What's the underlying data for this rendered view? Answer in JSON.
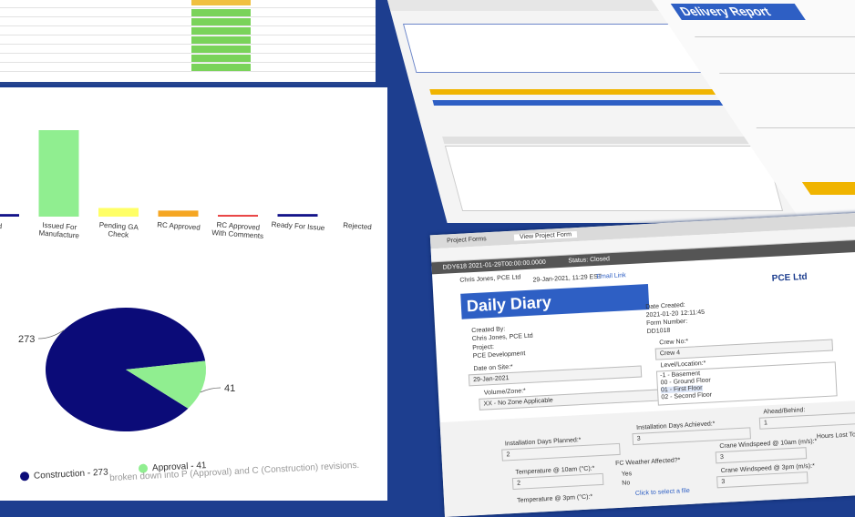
{
  "chart_data": [
    {
      "type": "bar",
      "categories": [
        "ld",
        "Issued For Manufacture",
        "Pending GA Check",
        "RC Approved",
        "RC Approved With Comments",
        "Ready For Issue",
        "Rejected"
      ],
      "values": [
        3,
        100,
        10,
        7,
        2,
        3,
        0
      ],
      "colors": [
        "#14148a",
        "#90ee90",
        "#ffff66",
        "#f5a623",
        "#e83a3a",
        "#14148a",
        "#999999"
      ]
    },
    {
      "type": "pie",
      "values": [
        273,
        41
      ],
      "colors": [
        "#0b0b78",
        "#90ee90"
      ],
      "legend": [
        "Construction - 273",
        "Approval - 41"
      ],
      "caption": "broken down into P (Approval) and C (Construction) revisions."
    }
  ],
  "delivery_report": {
    "title": "Delivery Report"
  },
  "daily_diary": {
    "tabs": [
      "Project Forms",
      "View Project Form"
    ],
    "header": "DDY618  2021-01-29T00:00:00.0000",
    "status": "Status: Closed",
    "user": "Chris Jones, PCE Ltd",
    "posted": "29-Jan-2021, 11:29 EST",
    "email_link": "Email Link",
    "title": "Daily Diary",
    "logo": "PCE Ltd",
    "created_by_label": "Created By:",
    "created_by": "Chris Jones, PCE Ltd",
    "project_label": "Project:",
    "project": "PCE Development",
    "date_created_label": "Date Created:",
    "date_created": "2021-01-20 12:11:45",
    "form_number_label": "Form Number:",
    "form_number": "DD1018",
    "date_on_site_label": "Date on Site:*",
    "date_on_site": "29-Jan-2021",
    "crew_label": "Crew No:*",
    "crew": "Crew 4",
    "zone_label": "Volume/Zone:*",
    "zone": "XX - No Zone Applicable",
    "level_label": "Level/Location:*",
    "levels": [
      "-1 - Basement",
      "00 - Ground Floor",
      "01 - First Floor",
      "02 - Second Floor"
    ],
    "days_planned_label": "Installation Days Planned:*",
    "days_planned": "2",
    "days_achieved_label": "Installation Days Achieved:*",
    "days_achieved": "3",
    "ahead_label": "Ahead/Behind:",
    "ahead": "1",
    "temp10_label": "Temperature @ 10am (°C):*",
    "temp10": "2",
    "temp3_label": "Temperature @ 3pm (°C):*",
    "weather_label": "FC Weather Affected?*",
    "yes": "Yes",
    "no": "No",
    "wind10_label": "Crane Windspeed @ 10am (m/s):*",
    "wind10": "3",
    "wind3_label": "Crane Windspeed @ 3pm (m/s):*",
    "wind3": "3",
    "hours_lost_label": "Hours Lost To Wind",
    "file_link": "Click to select a file"
  }
}
